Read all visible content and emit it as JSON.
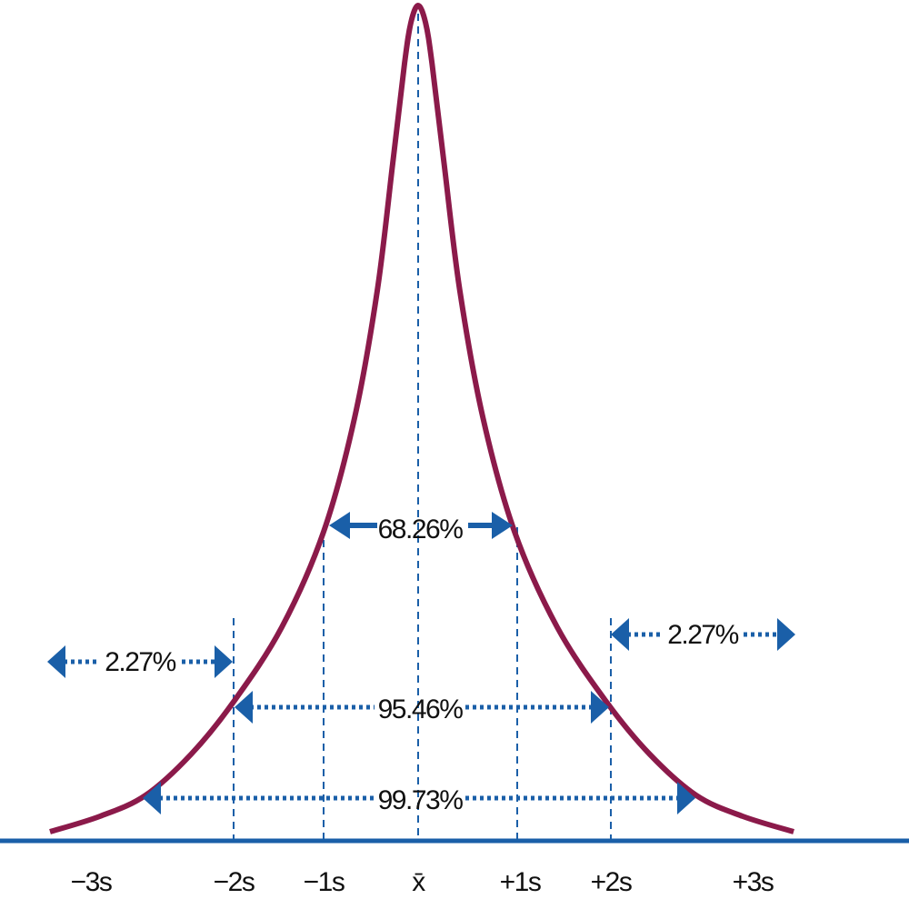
{
  "axis_labels": [
    "−3s",
    "−2s",
    "−1s",
    "x̄",
    "+1s",
    "+2s",
    "+3s"
  ],
  "intervals": {
    "one_sd": "68.26%",
    "two_sd": "95.46%",
    "three_sd": "99.73%",
    "left_tail": "2.27%",
    "right_tail": "2.27%"
  }
}
